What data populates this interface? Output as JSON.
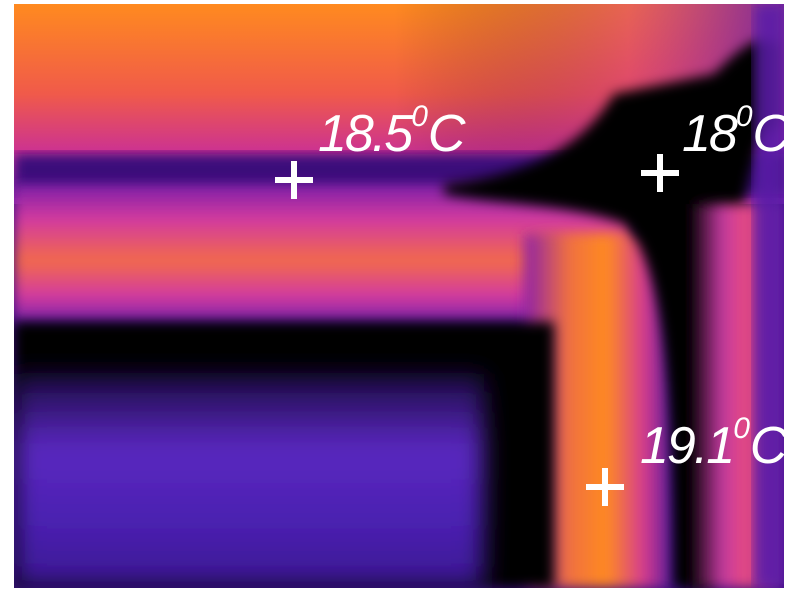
{
  "readings": [
    {
      "value": "18.5",
      "unit_super": "0",
      "unit": "C"
    },
    {
      "value": "18",
      "unit_super": "0",
      "unit": "C"
    },
    {
      "value": "19.1",
      "unit_super": "0",
      "unit": "C"
    }
  ],
  "colors": {
    "hot": "#ff8a20",
    "warm": "#e83a8a",
    "mid": "#c21ea0",
    "cool": "#4a1aa0",
    "cold": "#0a0010",
    "marker": "#ffffff"
  }
}
